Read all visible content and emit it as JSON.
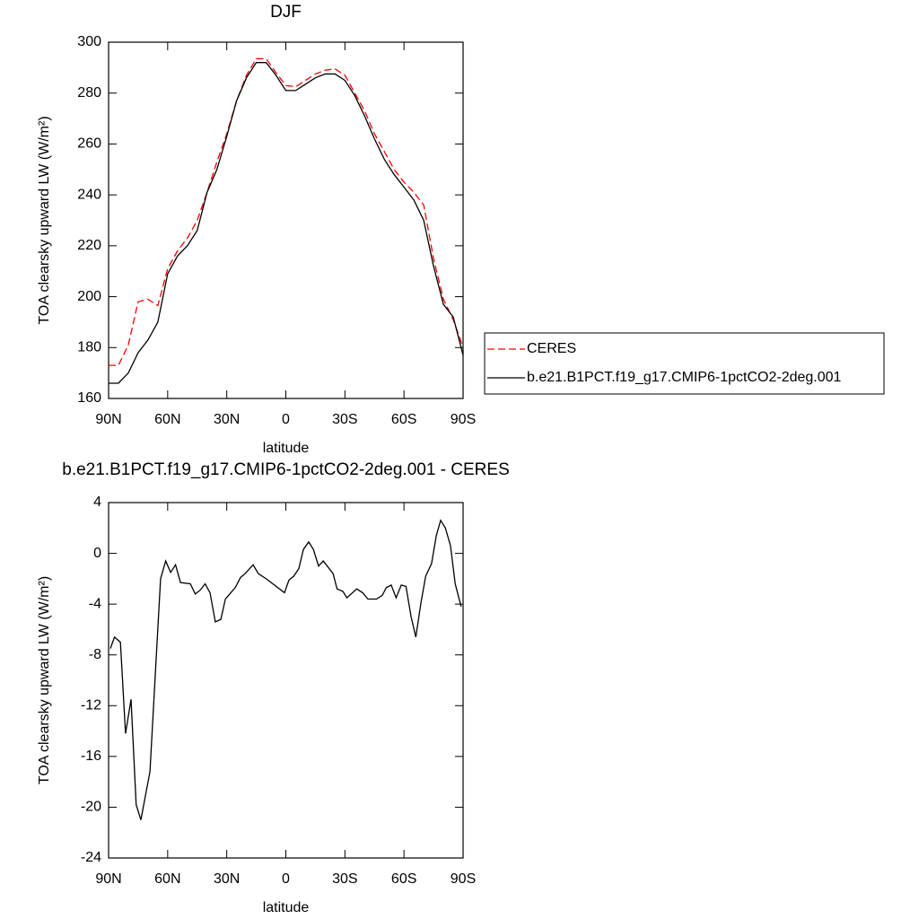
{
  "chart_data": [
    {
      "type": "line",
      "title": "DJF",
      "x_label": "latitude",
      "y_label": "TOA clearsky upward LW (W/m²)",
      "x": [
        90,
        85,
        80,
        75,
        70,
        65,
        60,
        55,
        50,
        45,
        40,
        35,
        30,
        25,
        20,
        15,
        10,
        5,
        0,
        -5,
        -10,
        -15,
        -20,
        -25,
        -30,
        -35,
        -40,
        -45,
        -50,
        -55,
        -60,
        -65,
        -70,
        -75,
        -80,
        -85,
        -90
      ],
      "series": [
        {
          "name": "CERES",
          "color": "#ff0000",
          "dash": true,
          "values": [
            173,
            173,
            181,
            198,
            199,
            196.5,
            211,
            218,
            223,
            230,
            241,
            253,
            264,
            277,
            287,
            293.5,
            293.5,
            288,
            283,
            282.5,
            285,
            287.5,
            289,
            289.5,
            287,
            280,
            273,
            264,
            257,
            250,
            245,
            241,
            236,
            215,
            199,
            191,
            180
          ]
        },
        {
          "name": "b.e21.B1PCT.f19_g17.CMIP6-1pctCO2-2deg.001",
          "color": "#000000",
          "dash": false,
          "values": [
            166,
            166,
            170,
            178,
            183,
            190,
            209,
            216,
            220,
            226,
            241,
            250,
            263,
            277,
            286,
            292,
            292,
            287,
            281,
            281,
            283.5,
            286,
            287.5,
            287.5,
            285,
            279,
            271,
            262,
            254,
            248,
            243,
            238,
            230,
            212,
            197,
            192,
            177
          ]
        }
      ],
      "xlim": [
        90,
        -90
      ],
      "ylim": [
        160,
        300
      ],
      "xticks": [
        {
          "value": 90,
          "label": "90N"
        },
        {
          "value": 60,
          "label": "60N"
        },
        {
          "value": 30,
          "label": "30N"
        },
        0,
        {
          "value": -30,
          "label": "30S"
        },
        {
          "value": -60,
          "label": "60S"
        },
        {
          "value": -90,
          "label": "90S"
        }
      ],
      "yticks": [
        160,
        180,
        200,
        220,
        240,
        260,
        280,
        300
      ],
      "legend": "right"
    },
    {
      "type": "line",
      "title": "b.e21.B1PCT.f19_g17.CMIP6-1pctCO2-2deg.001 - CERES",
      "x_label": "latitude",
      "y_label": "TOA clearsky upward LW (W/m²)",
      "x": [
        89.1,
        87,
        84,
        81.4,
        78.6,
        76,
        73.6,
        69,
        63.6,
        61,
        58.5,
        56,
        53.5,
        48.5,
        46,
        43.5,
        41,
        38.5,
        35.8,
        33,
        30.7,
        25.7,
        23,
        20.7,
        16.6,
        14,
        10,
        0.7,
        -1.6,
        -4,
        -6.6,
        -8.9,
        -11.6,
        -14,
        -16.6,
        -19,
        -24,
        -26,
        -29,
        -31,
        -36,
        -39,
        -41.7,
        -46,
        -49,
        -51,
        -53.5,
        -56,
        -58.6,
        -61,
        -63.6,
        -66,
        -68.6,
        -71,
        -74,
        -76.4,
        -78.6,
        -81,
        -83.6,
        -86,
        -89
      ],
      "color": "#000000",
      "values": [
        -7.5,
        -6.6,
        -7,
        -14.2,
        -11.5,
        -19.8,
        -21,
        -17.2,
        -2,
        -0.6,
        -1.5,
        -0.9,
        -2.3,
        -2.4,
        -3.2,
        -2.9,
        -2.4,
        -3.1,
        -5.4,
        -5.2,
        -3.6,
        -2.7,
        -1.9,
        -1.6,
        -0.9,
        -1.6,
        -2,
        -3.1,
        -2.1,
        -1.8,
        -1.2,
        0.3,
        0.9,
        0.3,
        -1,
        -0.6,
        -1.6,
        -2.8,
        -3,
        -3.5,
        -2.8,
        -3.1,
        -3.6,
        -3.6,
        -3.3,
        -2.7,
        -2.5,
        -3.5,
        -2.5,
        -2.6,
        -5,
        -6.6,
        -3.9,
        -1.8,
        -0.8,
        1.4,
        2.6,
        2,
        0.6,
        -2.4,
        -4.2
      ],
      "xlim": [
        90,
        -90
      ],
      "ylim": [
        -24,
        4
      ],
      "xticks": [
        {
          "value": 90,
          "label": "90N"
        },
        {
          "value": 60,
          "label": "60N"
        },
        {
          "value": 30,
          "label": "30N"
        },
        0,
        {
          "value": -30,
          "label": "30S"
        },
        {
          "value": -60,
          "label": "60S"
        },
        {
          "value": -90,
          "label": "90S"
        }
      ],
      "yticks": [
        -24,
        -20,
        -16,
        -12,
        -8,
        -4,
        0,
        4
      ]
    }
  ]
}
